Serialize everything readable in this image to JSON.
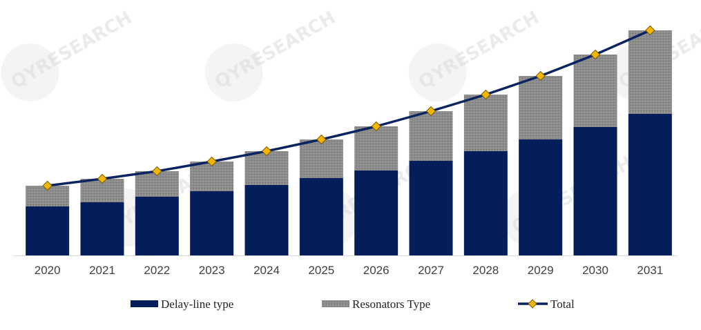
{
  "watermark": {
    "text": "QYRESEARCH"
  },
  "colors": {
    "delay_line": "#041e5c",
    "resonators": "#8c8c8c",
    "total_line": "#0b2461",
    "marker_fill": "#f2b705",
    "marker_stroke": "#7a5a00",
    "axis": "#d9d9d9"
  },
  "chart_data": {
    "type": "bar",
    "stacked": true,
    "categories": [
      "2020",
      "2021",
      "2022",
      "2023",
      "2024",
      "2025",
      "2026",
      "2027",
      "2028",
      "2029",
      "2030",
      "2031"
    ],
    "series": [
      {
        "name": "Delay-line type",
        "values": [
          71,
          77,
          85,
          93,
          102,
          112,
          123,
          137,
          151,
          168,
          186,
          205
        ]
      },
      {
        "name": "Resonators Type",
        "values": [
          30,
          34,
          37,
          43,
          49,
          56,
          64,
          72,
          82,
          92,
          105,
          121
        ]
      }
    ],
    "line_series": {
      "name": "Total",
      "values": [
        101,
        111,
        122,
        136,
        151,
        168,
        187,
        209,
        233,
        260,
        291,
        326
      ]
    },
    "ylim": [
      0,
      340
    ],
    "grid": false,
    "legend": "bottom",
    "title": "",
    "xlabel": "",
    "ylabel": ""
  }
}
